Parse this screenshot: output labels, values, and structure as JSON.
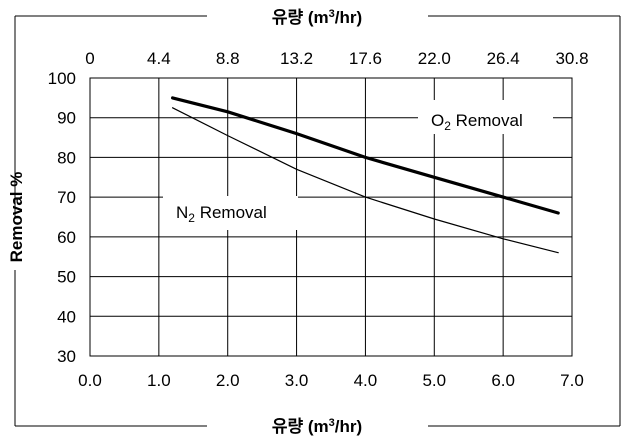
{
  "chart_data": {
    "type": "line",
    "ylabel": "Removal %",
    "xlabel": {
      "main": "유량 (m",
      "sup": "3",
      "end": "/hr)"
    },
    "x2label": {
      "main": "유량 (m",
      "sup": "3",
      "end": "/hr)"
    },
    "xlim": [
      0.0,
      7.0
    ],
    "ylim": [
      30,
      100
    ],
    "x_ticks": [
      "0.0",
      "1.0",
      "2.0",
      "3.0",
      "4.0",
      "5.0",
      "6.0",
      "7.0"
    ],
    "x2_ticks": [
      "0",
      "4.4",
      "8.8",
      "13.2",
      "17.6",
      "22.0",
      "26.4",
      "30.8"
    ],
    "y_ticks": [
      "30",
      "40",
      "50",
      "60",
      "70",
      "80",
      "90",
      "100"
    ],
    "grid": true,
    "series": [
      {
        "name": {
          "main": "O",
          "sub": "2",
          "end": " Removal"
        },
        "color": "#000000",
        "width": "thick",
        "x": [
          1.2,
          2.0,
          3.0,
          4.0,
          5.0,
          6.0,
          6.8
        ],
        "y": [
          95,
          91.5,
          86,
          80,
          75,
          70,
          66
        ]
      },
      {
        "name": {
          "main": "N",
          "sub": "2",
          "end": " Removal"
        },
        "color": "#000000",
        "width": "thin",
        "x": [
          1.2,
          2.0,
          3.0,
          4.0,
          5.0,
          6.0,
          6.8
        ],
        "y": [
          92.5,
          85.5,
          77,
          70,
          64.5,
          59.5,
          56
        ]
      }
    ]
  }
}
